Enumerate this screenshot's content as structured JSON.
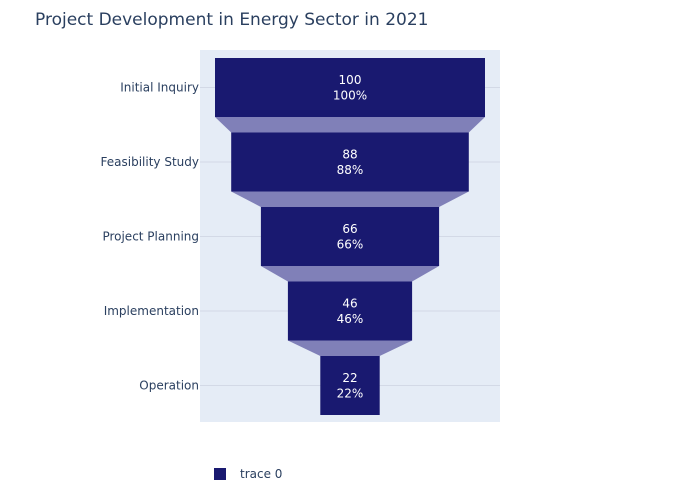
{
  "chart_data": {
    "type": "funnel",
    "title": "Project Development in Energy Sector in 2021",
    "categories": [
      "Initial Inquiry",
      "Feasibility Study",
      "Project Planning",
      "Implementation",
      "Operation"
    ],
    "values": [
      100,
      88,
      66,
      46,
      22
    ],
    "percent_labels": [
      "100%",
      "88%",
      "66%",
      "46%",
      "22%"
    ],
    "series": [
      {
        "name": "trace 0",
        "values": [
          100,
          88,
          66,
          46,
          22
        ]
      }
    ],
    "legend_position": "bottom-left",
    "grid": true,
    "colors": {
      "bar": "#191970",
      "connector": "#8080b8",
      "plot_bg": "#e5ecf6",
      "grid": "#d3d9e6",
      "text": "#2a3f5f"
    }
  }
}
